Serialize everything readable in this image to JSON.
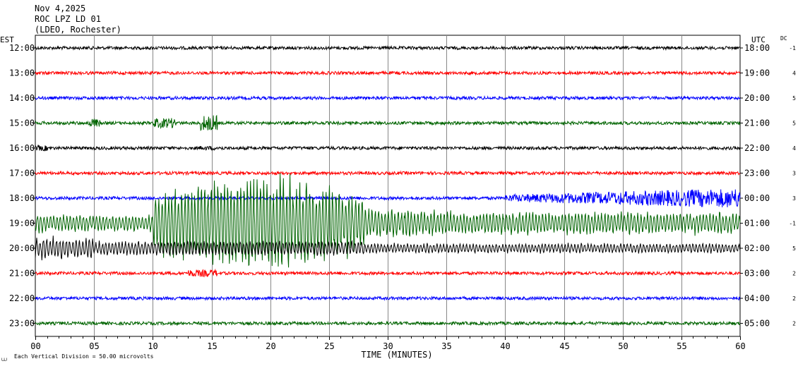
{
  "header": {
    "date": "Nov 4,2025",
    "station": "ROC LPZ LD 01",
    "location": "(LDEO, Rochester)"
  },
  "left_axis_label": "EST",
  "right_axis_label": "UTC",
  "dc_label": "DC",
  "footer": {
    "scale_note": "Each Vertical Division =   50.00 microvolts",
    "corner_mark": "⩊"
  },
  "chart_data": {
    "type": "line",
    "xlabel": "TIME (MINUTES)",
    "xlim": [
      0,
      60
    ],
    "x_ticks": [
      "00",
      "05",
      "10",
      "15",
      "20",
      "25",
      "30",
      "35",
      "40",
      "45",
      "50",
      "55",
      "60"
    ],
    "rows": [
      {
        "est": "12:00",
        "utc": "18:00",
        "dc": "-1",
        "color": "#000000"
      },
      {
        "est": "13:00",
        "utc": "19:00",
        "dc": "4",
        "color": "#ff0000"
      },
      {
        "est": "14:00",
        "utc": "20:00",
        "dc": "5",
        "color": "#0000ff"
      },
      {
        "est": "15:00",
        "utc": "21:00",
        "dc": "5",
        "color": "#006400"
      },
      {
        "est": "16:00",
        "utc": "22:00",
        "dc": "4",
        "color": "#000000"
      },
      {
        "est": "17:00",
        "utc": "23:00",
        "dc": "3",
        "color": "#ff0000"
      },
      {
        "est": "18:00",
        "utc": "00:00",
        "dc": "3",
        "color": "#0000ff"
      },
      {
        "est": "19:00",
        "utc": "01:00",
        "dc": "-1",
        "color": "#006400"
      },
      {
        "est": "20:00",
        "utc": "02:00",
        "dc": "5",
        "color": "#000000"
      },
      {
        "est": "21:00",
        "utc": "03:00",
        "dc": "2",
        "color": "#ff0000"
      },
      {
        "est": "22:00",
        "utc": "04:00",
        "dc": "2",
        "color": "#0000ff"
      },
      {
        "est": "23:00",
        "utc": "05:00",
        "dc": "2",
        "color": "#006400"
      }
    ],
    "grid": true
  }
}
